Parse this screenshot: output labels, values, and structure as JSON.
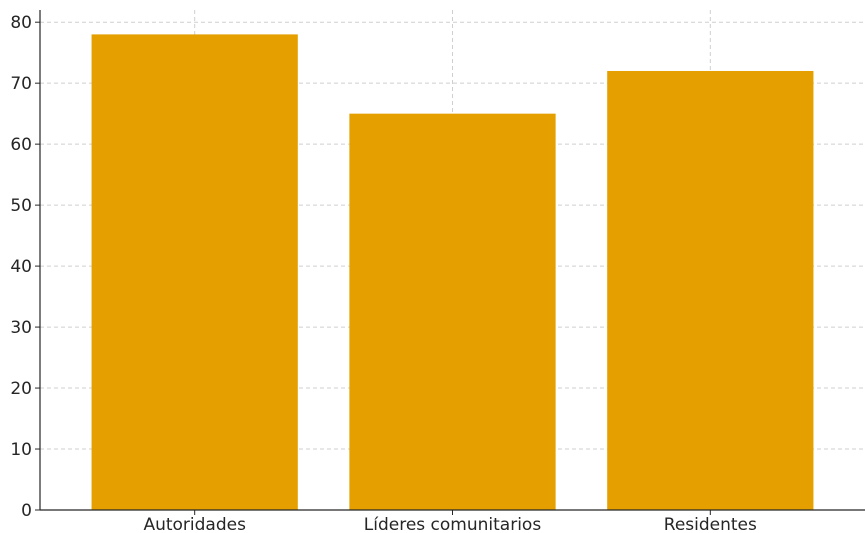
{
  "chart_data": {
    "type": "bar",
    "title": "",
    "xlabel": "",
    "ylabel": "",
    "categories": [
      "Autoridades",
      "Líderes comunitarios",
      "Residentes"
    ],
    "values": [
      78,
      65,
      72
    ],
    "ylim": [
      0,
      82
    ],
    "yticks": [
      0,
      10,
      20,
      30,
      40,
      50,
      60,
      70,
      80
    ],
    "grid": true,
    "bar_color": "#E5A000",
    "legend": "none"
  }
}
